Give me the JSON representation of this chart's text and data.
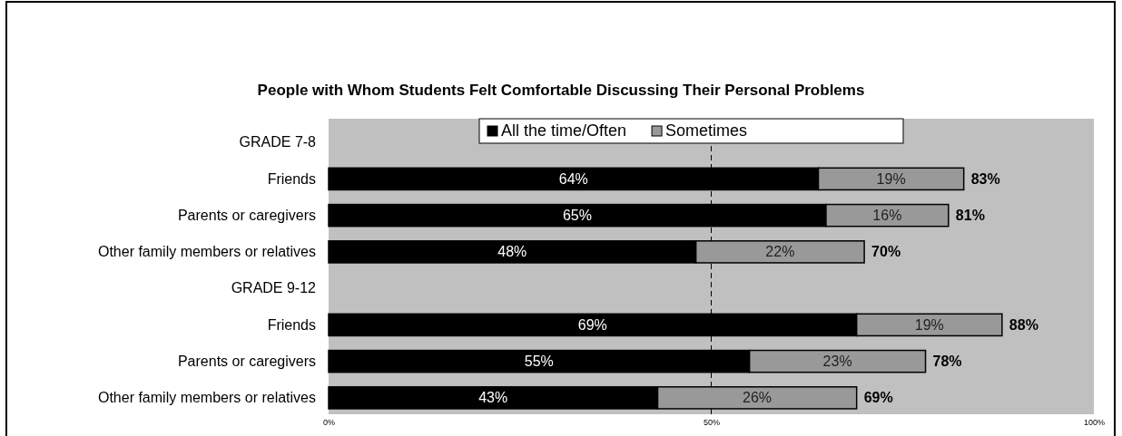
{
  "chart_data": {
    "type": "bar",
    "orientation": "horizontal",
    "stacked": true,
    "title": "People with Whom Students Felt Comfortable Discussing Their Personal Problems",
    "categories": [
      "GRADE 7-8",
      "Friends",
      "Parents or caregivers",
      "Other family members or relatives",
      "GRADE 9-12",
      "Friends",
      "Parents or caregivers",
      "Other family members or relatives"
    ],
    "series": [
      {
        "name": "All the time/Often",
        "color": "#000000",
        "values": [
          null,
          64,
          65,
          48,
          null,
          69,
          55,
          43
        ],
        "value_labels": [
          null,
          "64%",
          "65%",
          "48%",
          null,
          "69%",
          "55%",
          "43%"
        ]
      },
      {
        "name": "Sometimes",
        "color": "#999999",
        "values": [
          null,
          19,
          16,
          22,
          null,
          19,
          23,
          26
        ],
        "value_labels": [
          null,
          "19%",
          "16%",
          "22%",
          null,
          "19%",
          "23%",
          "26%"
        ]
      }
    ],
    "totals": [
      null,
      "83%",
      "81%",
      "70%",
      null,
      "88%",
      "78%",
      "69%"
    ],
    "xlim": [
      0,
      100
    ],
    "xticks": [
      {
        "value": 0,
        "label": "0%"
      },
      {
        "value": 50,
        "label": "50%"
      },
      {
        "value": 100,
        "label": "100%"
      }
    ],
    "ref_lines": [
      {
        "axis": "x",
        "value": 50,
        "line_style": "dashed",
        "color": "#000000"
      }
    ],
    "grid": false,
    "legend": "top"
  }
}
